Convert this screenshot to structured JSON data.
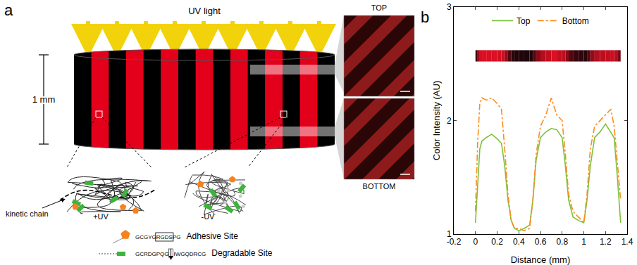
{
  "panel_a": {
    "label": "a",
    "uv_label": "UV light",
    "height_label": "1 mm",
    "images": [
      {
        "label": "TOP"
      },
      {
        "label": "BOTTOM"
      }
    ],
    "network": {
      "kinetic_chain_label": "kinetic chain",
      "conditions": [
        "+UV",
        "-UV"
      ]
    },
    "peptides": [
      {
        "name": "Adhesive Site",
        "sequence": [
          "GCGYG",
          "RGDS",
          "PG"
        ]
      },
      {
        "name": "Degradable Site",
        "sequence": [
          "GCRDGPQG",
          "IWGQDRCG"
        ]
      }
    ]
  },
  "chart_data": {
    "type": "line",
    "annotations": [
      {
        "text": "b"
      }
    ],
    "x_label": "Distance (mm)",
    "y_label": "Color Intensity (AU)",
    "x": [
      0,
      0.02,
      0.04,
      0.06,
      0.1,
      0.15,
      0.2,
      0.24,
      0.27,
      0.3,
      0.33,
      0.36,
      0.4,
      0.45,
      0.5,
      0.53,
      0.56,
      0.6,
      0.65,
      0.7,
      0.75,
      0.8,
      0.83,
      0.86,
      0.9,
      0.95,
      1.0,
      1.03,
      1.06,
      1.1,
      1.15,
      1.2,
      1.25,
      1.28,
      1.31,
      1.34
    ],
    "series": [
      {
        "name": "Top",
        "color": "#7dc23a",
        "line_style": "solid",
        "values": [
          1.1,
          1.45,
          1.75,
          1.82,
          1.85,
          1.88,
          1.84,
          1.8,
          1.6,
          1.3,
          1.12,
          1.05,
          1.03,
          1.05,
          1.08,
          1.3,
          1.65,
          1.85,
          1.9,
          1.93,
          1.92,
          1.85,
          1.6,
          1.3,
          1.15,
          1.12,
          1.1,
          1.3,
          1.6,
          1.85,
          1.9,
          1.97,
          1.9,
          1.85,
          1.5,
          1.1
        ]
      },
      {
        "name": "Bottom",
        "color": "#ff8c1a",
        "line_style": "dash",
        "values": [
          1.2,
          1.8,
          2.15,
          2.2,
          2.18,
          2.2,
          2.15,
          2.1,
          1.75,
          1.35,
          1.12,
          1.05,
          1.05,
          1.03,
          1.05,
          1.3,
          1.7,
          1.95,
          2.05,
          2.2,
          2.05,
          2.0,
          1.7,
          1.35,
          1.2,
          1.15,
          1.1,
          1.35,
          1.75,
          1.95,
          2.0,
          2.05,
          2.1,
          1.95,
          1.6,
          1.3
        ]
      }
    ],
    "xlim": [
      -0.2,
      1.4
    ],
    "xticks": [
      -0.2,
      0,
      0.2,
      0.4,
      0.6,
      0.8,
      1,
      1.2,
      1.4
    ],
    "ylim": [
      1,
      3
    ],
    "yticks": [
      1,
      2,
      3
    ],
    "grid": false,
    "legend": "top"
  }
}
